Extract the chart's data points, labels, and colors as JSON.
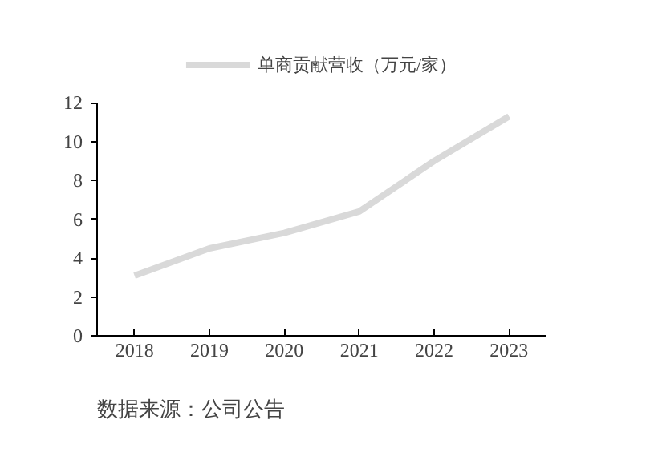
{
  "chart_data": {
    "type": "line",
    "categories": [
      "2018",
      "2019",
      "2020",
      "2021",
      "2022",
      "2023"
    ],
    "series": [
      {
        "name": "单商贡献营收（万元/家）",
        "color": "#d9d9d9",
        "values": [
          3.1,
          4.5,
          5.3,
          6.4,
          9.0,
          11.3
        ]
      }
    ],
    "ylim": [
      0,
      12
    ],
    "yticks": [
      0,
      2,
      4,
      6,
      8,
      10,
      12
    ],
    "grid": false,
    "legend": "top",
    "marker": "none",
    "line_style": "solid",
    "annotations": [
      "数据来源：公司公告"
    ]
  }
}
